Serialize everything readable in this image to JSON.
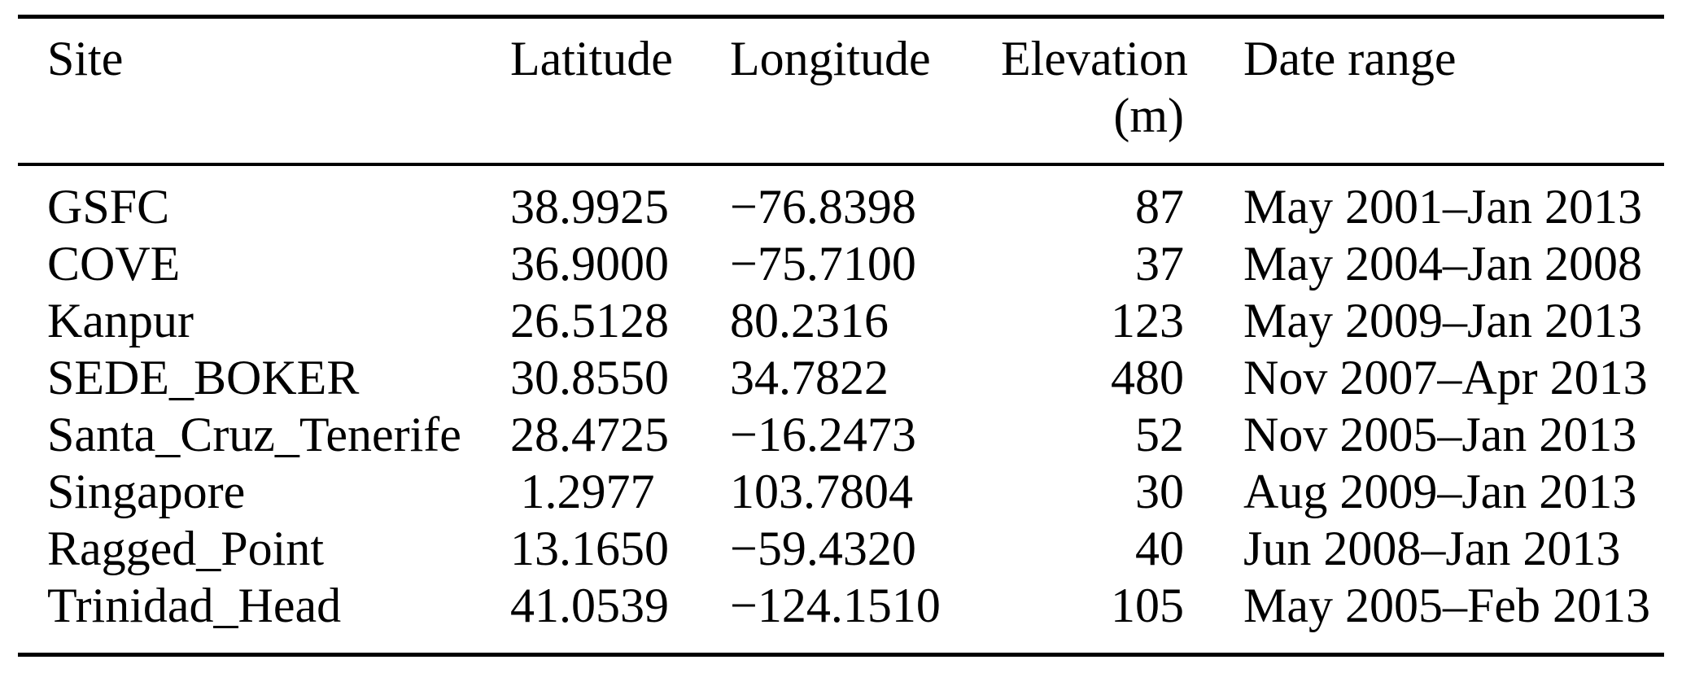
{
  "table": {
    "columns": [
      {
        "label": "Site"
      },
      {
        "label": "Latitude"
      },
      {
        "label": "Longitude"
      },
      {
        "label": "Elevation",
        "unit": "(m)"
      },
      {
        "label": "Date range"
      }
    ],
    "rows": [
      {
        "site": "GSFC",
        "latitude": "38.9925",
        "longitude": "−76.8398",
        "elevation": "87",
        "date_range": "May 2001–Jan 2013"
      },
      {
        "site": "COVE",
        "latitude": "36.9000",
        "longitude": "−75.7100",
        "elevation": "37",
        "date_range": "May 2004–Jan 2008"
      },
      {
        "site": "Kanpur",
        "latitude": "26.5128",
        "longitude": "80.2316",
        "elevation": "123",
        "date_range": "May 2009–Jan 2013"
      },
      {
        "site": "SEDE_BOKER",
        "latitude": "30.8550",
        "longitude": "34.7822",
        "elevation": "480",
        "date_range": "Nov 2007–Apr 2013"
      },
      {
        "site": "Santa_Cruz_Tenerife",
        "latitude": "28.4725",
        "longitude": "−16.2473",
        "elevation": "52",
        "date_range": "Nov 2005–Jan 2013"
      },
      {
        "site": "Singapore",
        "latitude": "1.2977",
        "longitude": "103.7804",
        "elevation": "30",
        "date_range": "Aug 2009–Jan 2013"
      },
      {
        "site": "Ragged_Point",
        "latitude": "13.1650",
        "longitude": "−59.4320",
        "elevation": "40",
        "date_range": "Jun 2008–Jan 2013"
      },
      {
        "site": "Trinidad_Head",
        "latitude": "41.0539",
        "longitude": "−124.1510",
        "elevation": "105",
        "date_range": "May 2005–Feb 2013"
      }
    ]
  }
}
